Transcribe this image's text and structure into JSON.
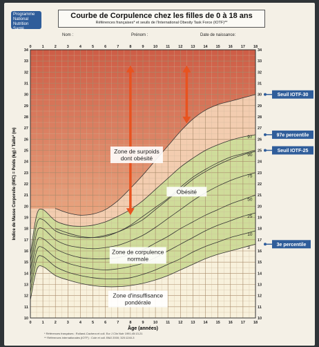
{
  "header": {
    "logo_lines": [
      "Programme",
      "National",
      "Nutrition",
      "Santé"
    ],
    "title": "Courbe de Corpulence chez les filles de 0 à 18 ans",
    "subtitle": "Références françaises* et seuils de l'International Obesity Task Force (IOTF)**"
  },
  "fields": {
    "nom": "Nom :",
    "prenom": "Prénom :",
    "naissance": "Date de naissance:"
  },
  "footnotes": [
    "* Références françaises : Rolland-Cachera et coll. Eur J Clin Nutr 1991;45:13-21",
    "** Références internationales (IOTF) : Cole et coll. BMJ 2000; 320:1240-3"
  ],
  "colors": {
    "obesity_top": "#c9503a",
    "obesity_bottom": "#e8a07a",
    "normal_band": "#cfdc9a",
    "arrow": "#e8531f",
    "badge": "#2f5d9a"
  },
  "chart_data": {
    "type": "line",
    "title": "Courbe de Corpulence chez les filles de 0 à 18 ans",
    "xlabel": "Âge (années)",
    "ylabel": "Indice de Masse Corporelle (IMC) = Poids (kg) / Taille² (m)",
    "xlim": [
      0,
      18
    ],
    "ylim": [
      10,
      34
    ],
    "x_ticks": [
      "0",
      "1",
      "2",
      "3",
      "4",
      "5",
      "6",
      "7",
      "8",
      "9",
      "10",
      "11",
      "12",
      "13",
      "14",
      "15",
      "16",
      "17",
      "18"
    ],
    "y_ticks": [
      "10",
      "11",
      "12",
      "13",
      "14",
      "15",
      "16",
      "17",
      "18",
      "19",
      "20",
      "21",
      "22",
      "23",
      "24",
      "25",
      "26",
      "27",
      "28",
      "29",
      "30",
      "31",
      "32",
      "33",
      "34"
    ],
    "grid": true,
    "x": [
      0,
      0.5,
      1,
      2,
      3,
      4,
      5,
      6,
      7,
      8,
      9,
      10,
      11,
      12,
      13,
      14,
      15,
      16,
      17,
      18
    ],
    "series": [
      {
        "name": "3",
        "values": [
          11.6,
          14.3,
          14.6,
          13.8,
          13.4,
          13.1,
          12.9,
          12.8,
          12.8,
          12.9,
          13.1,
          13.4,
          13.8,
          14.3,
          14.8,
          15.3,
          15.7,
          16.0,
          16.3,
          16.6
        ]
      },
      {
        "name": "10",
        "values": [
          12.3,
          15.2,
          15.5,
          14.6,
          14.1,
          13.8,
          13.6,
          13.5,
          13.5,
          13.6,
          13.9,
          14.3,
          14.8,
          15.3,
          15.9,
          16.4,
          16.8,
          17.2,
          17.5,
          17.8
        ]
      },
      {
        "name": "25",
        "values": [
          13.0,
          16.0,
          16.3,
          15.4,
          14.9,
          14.6,
          14.4,
          14.3,
          14.4,
          14.6,
          14.9,
          15.4,
          16.0,
          16.6,
          17.2,
          17.8,
          18.3,
          18.7,
          19.1,
          19.4
        ]
      },
      {
        "name": "50",
        "values": [
          13.7,
          16.8,
          17.1,
          16.2,
          15.7,
          15.4,
          15.3,
          15.3,
          15.4,
          15.7,
          16.1,
          16.7,
          17.3,
          18.0,
          18.6,
          19.2,
          19.7,
          20.2,
          20.6,
          21.0
        ]
      },
      {
        "name": "75",
        "values": [
          14.3,
          17.6,
          18.0,
          17.0,
          16.5,
          16.3,
          16.2,
          16.3,
          16.5,
          16.9,
          17.4,
          18.1,
          18.9,
          19.7,
          20.5,
          21.2,
          21.8,
          22.3,
          22.7,
          23.0
        ]
      },
      {
        "name": "90",
        "values": [
          15.0,
          18.4,
          18.8,
          17.8,
          17.4,
          17.2,
          17.2,
          17.4,
          17.7,
          18.2,
          18.8,
          19.7,
          20.6,
          21.5,
          22.4,
          23.1,
          23.7,
          24.2,
          24.6,
          24.9
        ]
      },
      {
        "name": "97",
        "values": [
          15.7,
          19.2,
          19.7,
          18.7,
          18.3,
          18.2,
          18.3,
          18.6,
          19.1,
          19.7,
          20.5,
          21.5,
          22.5,
          23.5,
          24.3,
          25.0,
          25.5,
          25.9,
          26.2,
          26.4
        ]
      },
      {
        "name": "Seuil IOTF-25",
        "values": [
          null,
          null,
          null,
          18.0,
          17.6,
          17.3,
          17.2,
          17.3,
          17.7,
          18.3,
          19.1,
          19.9,
          20.7,
          21.7,
          22.6,
          23.3,
          23.9,
          24.4,
          24.7,
          25.0
        ]
      },
      {
        "name": "Seuil IOTF-30",
        "values": [
          null,
          null,
          null,
          19.8,
          19.4,
          19.2,
          19.3,
          19.7,
          20.5,
          21.6,
          22.8,
          24.1,
          25.4,
          26.7,
          27.8,
          28.6,
          29.1,
          29.4,
          29.7,
          30.0
        ]
      }
    ],
    "series_labels": [
      "3",
      "10",
      "25",
      "50",
      "75",
      "90",
      "97"
    ],
    "zones": [
      {
        "label": "Obésité",
        "lines": [
          "Obésité"
        ]
      },
      {
        "label": "Zone de surpoids dont obésité",
        "lines": [
          "Zone de surpoids",
          "dont obésité"
        ]
      },
      {
        "label": "Zone de corpulence normale",
        "lines": [
          "Zone de corpulence",
          "normale"
        ]
      },
      {
        "label": "Zone d'insuffisance pondérale",
        "lines": [
          "Zone d'insuffisance",
          "pondérale"
        ]
      }
    ],
    "annotations": [
      "Seuil IOTF-30",
      "97e percentile",
      "Seuil IOTF-25",
      "3e percentile"
    ]
  }
}
